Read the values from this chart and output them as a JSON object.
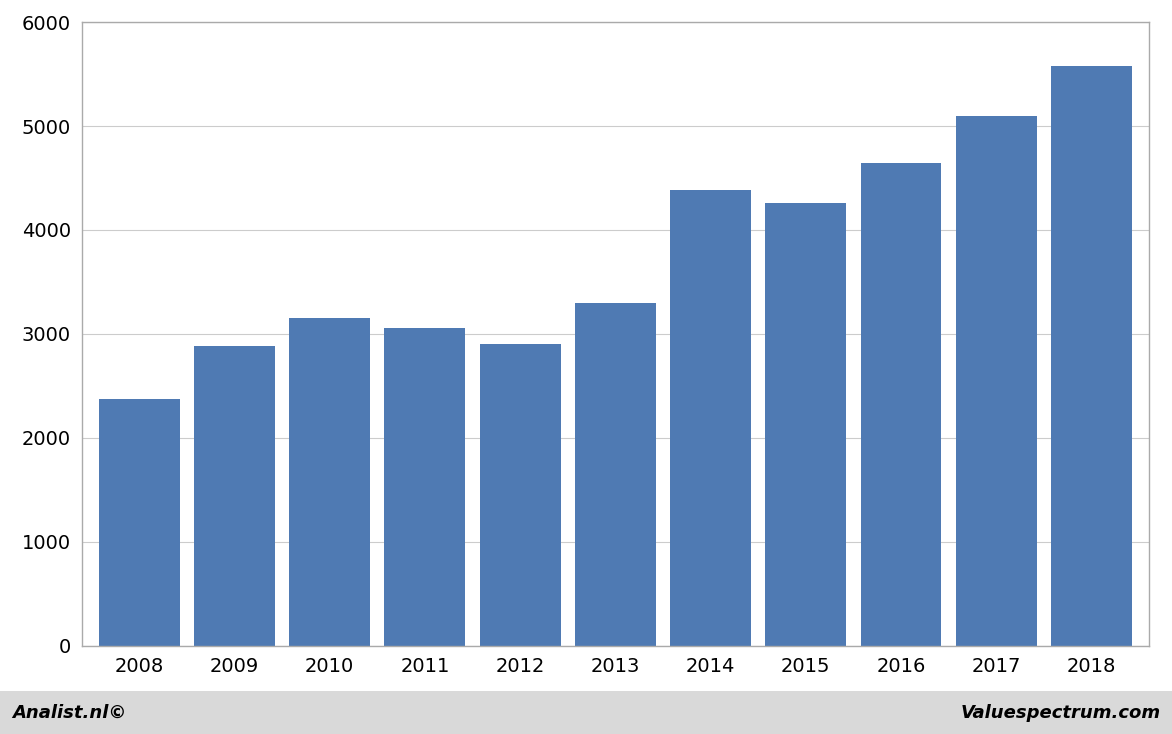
{
  "categories": [
    "2008",
    "2009",
    "2010",
    "2011",
    "2012",
    "2013",
    "2014",
    "2015",
    "2016",
    "2017",
    "2018"
  ],
  "values": [
    2370,
    2880,
    3150,
    3060,
    2900,
    3300,
    4380,
    4260,
    4640,
    5100,
    5580
  ],
  "bar_color": "#4f7ab3",
  "background_color": "#ffffff",
  "plot_area_color": "#ffffff",
  "grid_color": "#cccccc",
  "ylim": [
    0,
    6000
  ],
  "yticks": [
    0,
    1000,
    2000,
    3000,
    4000,
    5000,
    6000
  ],
  "footer_left": "Analist.nl©",
  "footer_right": "Valuespectrum.com",
  "bar_edge_color": "none",
  "bar_width": 0.85,
  "footer_bg_color": "#d9d9d9"
}
